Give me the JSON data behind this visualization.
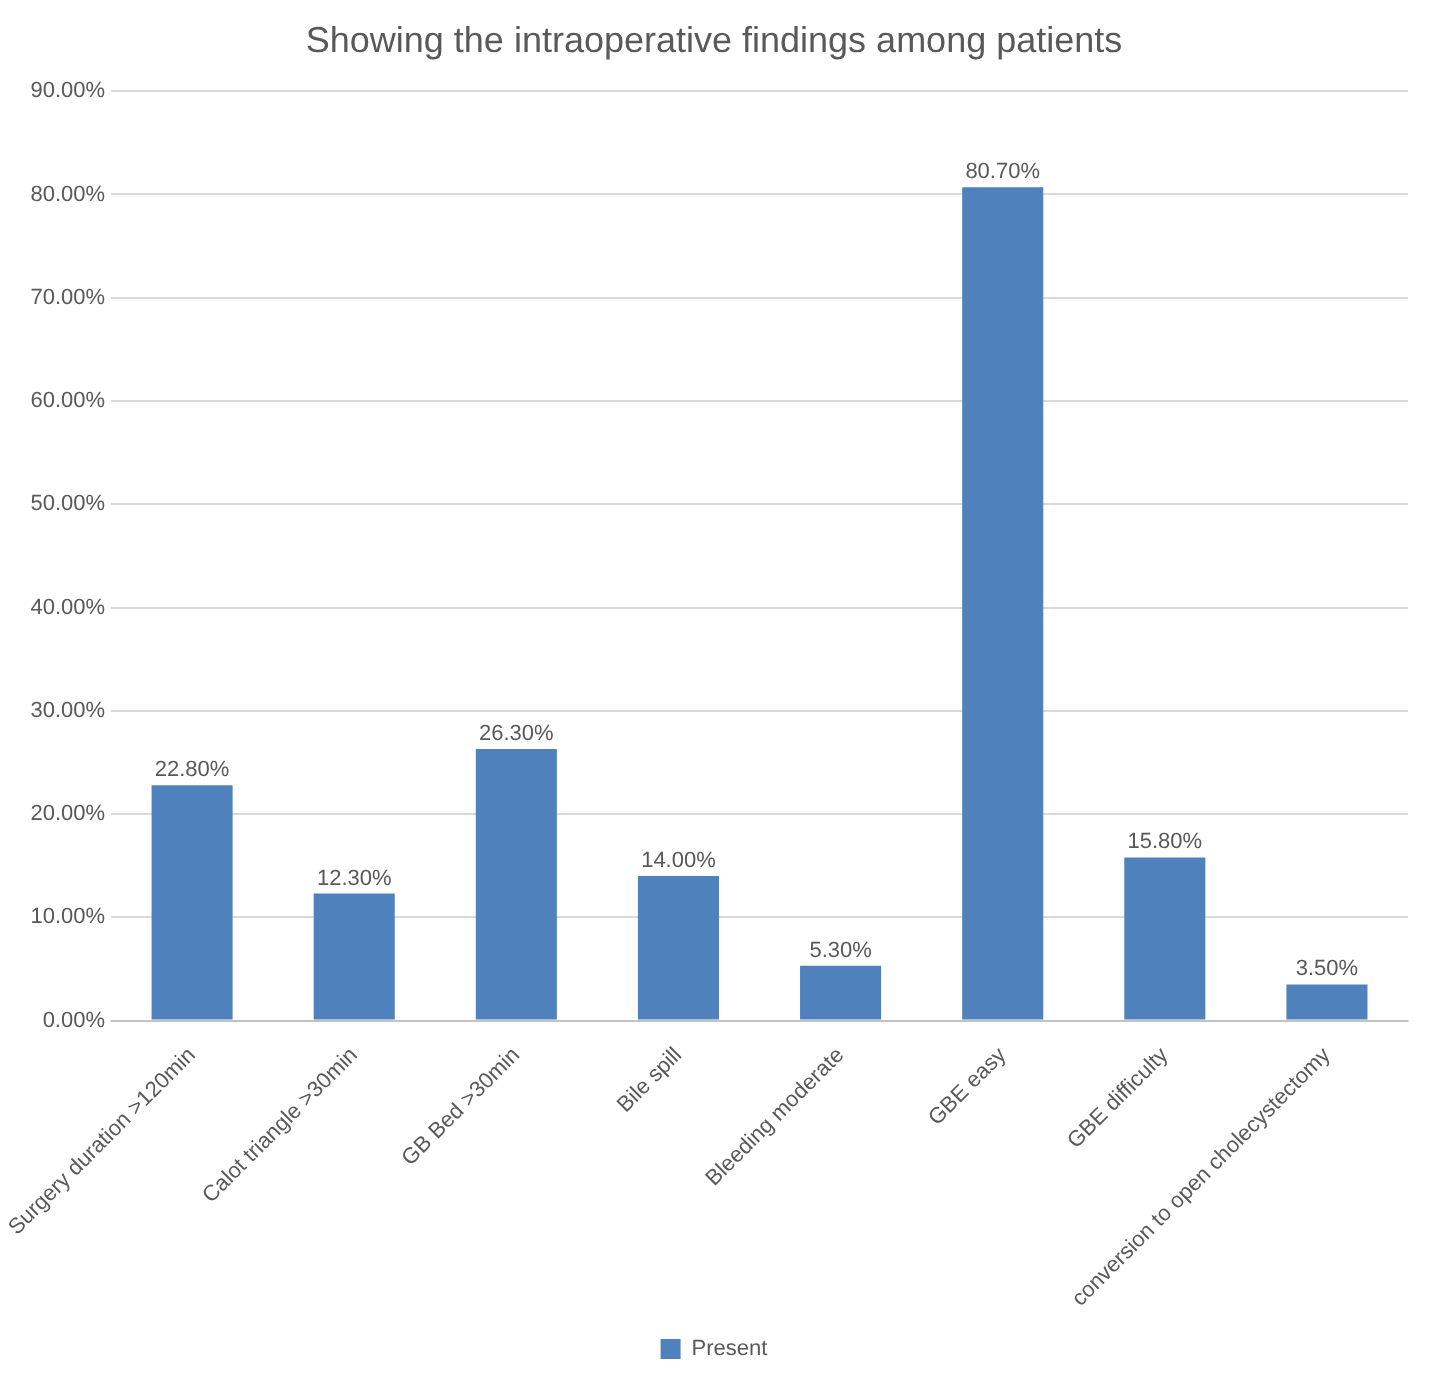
{
  "chart_data": {
    "type": "bar",
    "title": "Showing the intraoperative findings among patients",
    "categories": [
      "Surgery duration >120min",
      "Calot triangle >30min",
      "GB Bed >30min",
      "Bile spill",
      "Bleeding moderate",
      "GBE easy",
      "GBE difficulty",
      "conversion to open cholecystectomy"
    ],
    "series": [
      {
        "name": "Present",
        "color": "#4f81bd",
        "values": [
          22.8,
          12.3,
          26.3,
          14.0,
          5.3,
          80.7,
          15.8,
          3.5
        ],
        "value_labels": [
          "22.80%",
          "12.30%",
          "26.30%",
          "14.00%",
          "5.30%",
          "80.70%",
          "15.80%",
          "3.50%"
        ]
      }
    ],
    "ylim": [
      0,
      90
    ],
    "yticks": [
      {
        "value": 0,
        "label": "0.00%"
      },
      {
        "value": 10,
        "label": "10.00%"
      },
      {
        "value": 20,
        "label": "20.00%"
      },
      {
        "value": 30,
        "label": "30.00%"
      },
      {
        "value": 40,
        "label": "40.00%"
      },
      {
        "value": 50,
        "label": "50.00%"
      },
      {
        "value": 60,
        "label": "60.00%"
      },
      {
        "value": 70,
        "label": "70.00%"
      },
      {
        "value": 80,
        "label": "80.00%"
      },
      {
        "value": 90,
        "label": "90.00%"
      }
    ],
    "grid": "y",
    "legend": "bottom"
  }
}
